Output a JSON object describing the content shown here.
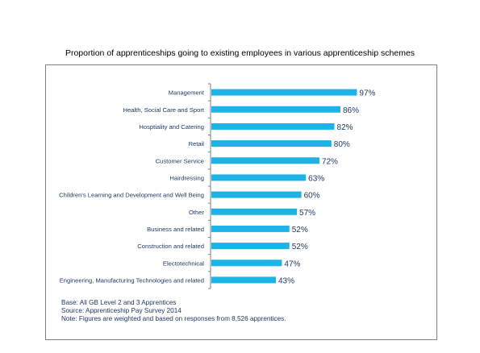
{
  "chart_data": {
    "type": "bar",
    "orientation": "horizontal",
    "title": "Proportion of apprenticeships going to existing employees  in various apprenticeship schemes",
    "categories": [
      "Management",
      "Health, Social Care and Sport",
      "Hosptiality and Catering",
      "Retail",
      "Customer Service",
      "Hairdressing",
      "Children's Learning and Development and Well Being",
      "Other",
      "Business and related",
      "Construction and related",
      "Electotechnical",
      "Engineering, Manufacturing Technologies and related"
    ],
    "values": [
      97,
      86,
      82,
      80,
      72,
      63,
      60,
      57,
      52,
      52,
      47,
      43
    ],
    "value_labels": [
      "97%",
      "86%",
      "82%",
      "80%",
      "72%",
      "63%",
      "60%",
      "57%",
      "52%",
      "52%",
      "47%",
      "43%"
    ],
    "xlim": [
      0,
      100
    ],
    "grid": false,
    "legend": "none",
    "bar_color": "#1eb3e6",
    "text_color": "#1f3864"
  },
  "notes": [
    "Base: All GB Level 2 and 3 Apprentices",
    "Source: Apprenticeship Pay Survey 2014",
    "Note: Figures are weighted and based on responses from 8,526 apprentices."
  ]
}
